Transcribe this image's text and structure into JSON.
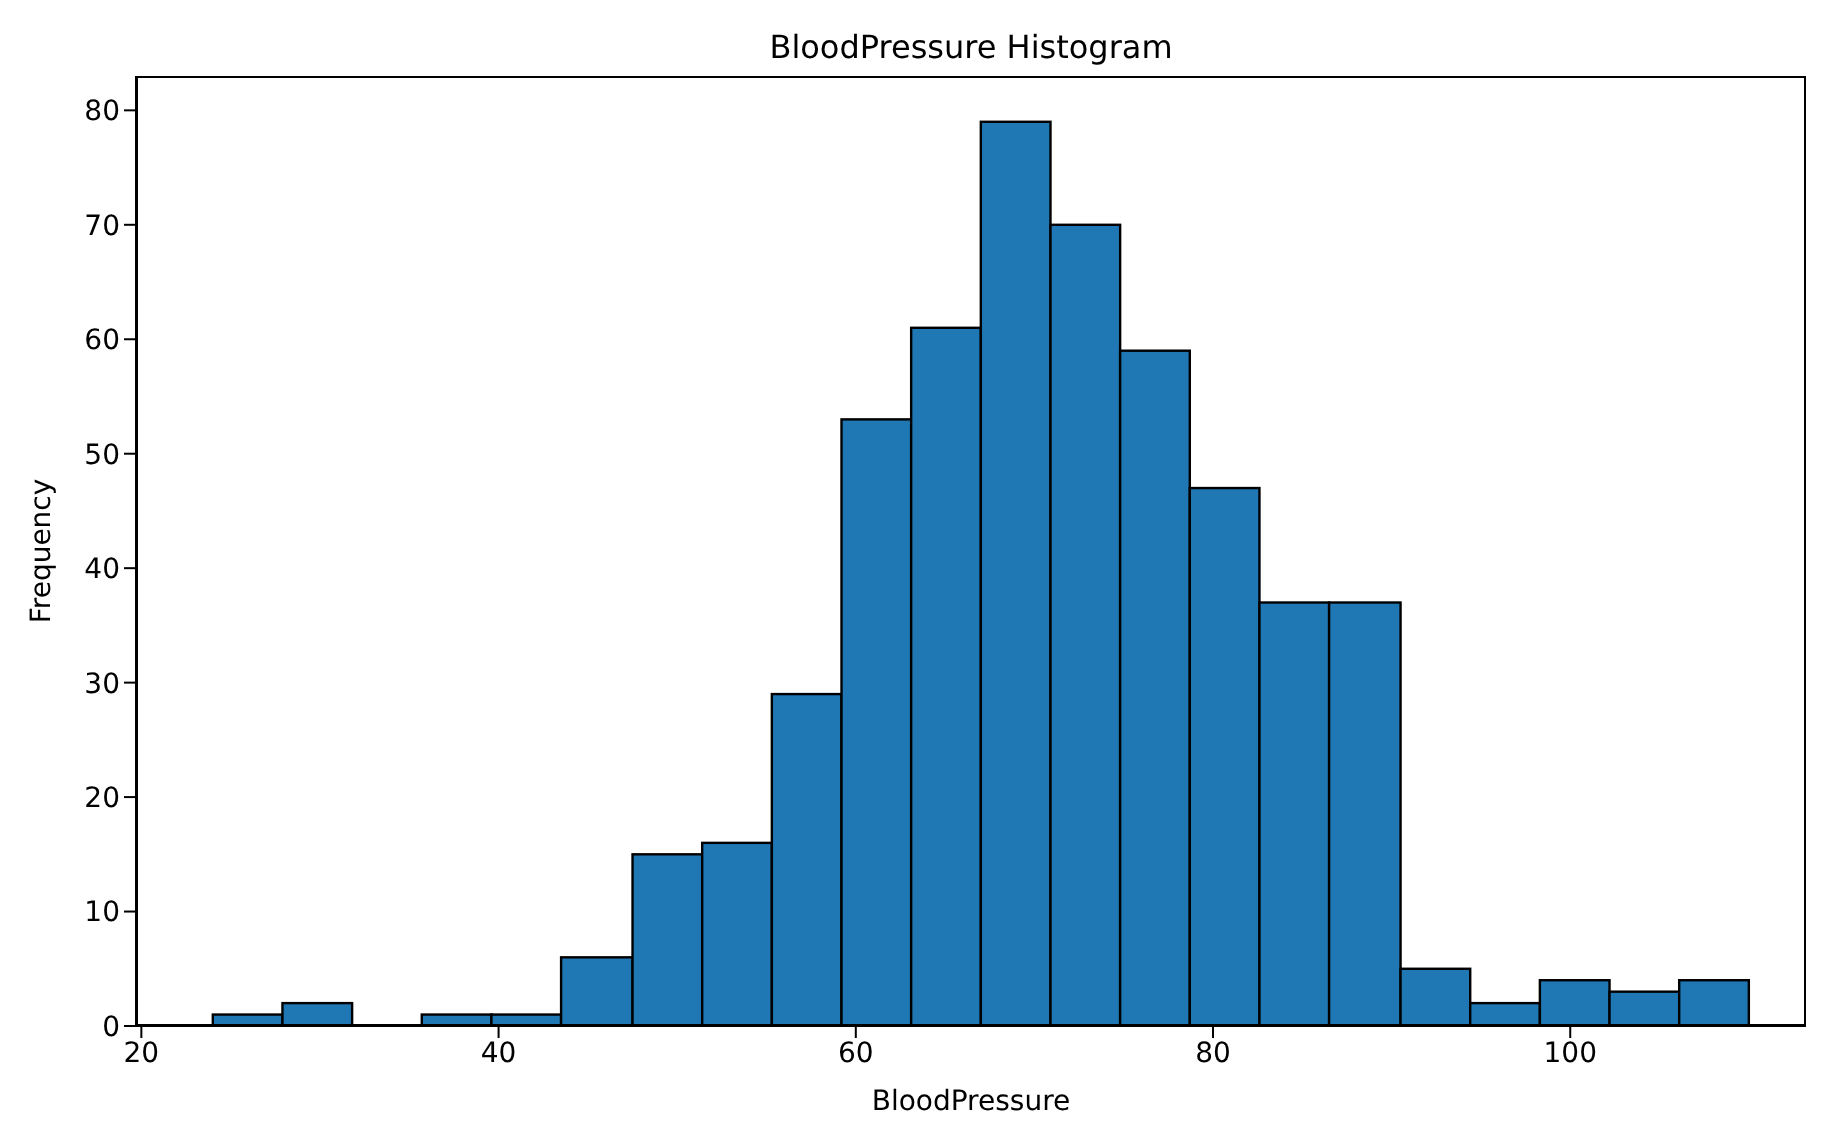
{
  "chart_data": {
    "type": "histogram",
    "title": "BloodPressure Histogram",
    "xlabel": "BloodPressure",
    "ylabel": "Frequency",
    "bins": [
      24,
      27.9,
      31.8,
      35.7,
      39.6,
      43.5,
      47.5,
      51.4,
      55.3,
      59.2,
      63.1,
      67,
      70.9,
      74.8,
      78.7,
      82.6,
      86.5,
      90.5,
      94.4,
      98.3,
      102.2,
      106.1,
      110
    ],
    "values": [
      1,
      2,
      0,
      1,
      1,
      6,
      15,
      16,
      29,
      53,
      61,
      79,
      70,
      59,
      47,
      37,
      37,
      5,
      2,
      4,
      3,
      4
    ],
    "color": "#1f77b4",
    "xlim": [
      19.7,
      113.2
    ],
    "xticks": [
      20,
      40,
      60,
      80,
      100
    ],
    "ylim": [
      0,
      83
    ],
    "yticks": [
      0,
      10,
      20,
      30,
      40,
      50,
      60,
      70,
      80
    ],
    "grid": false
  }
}
